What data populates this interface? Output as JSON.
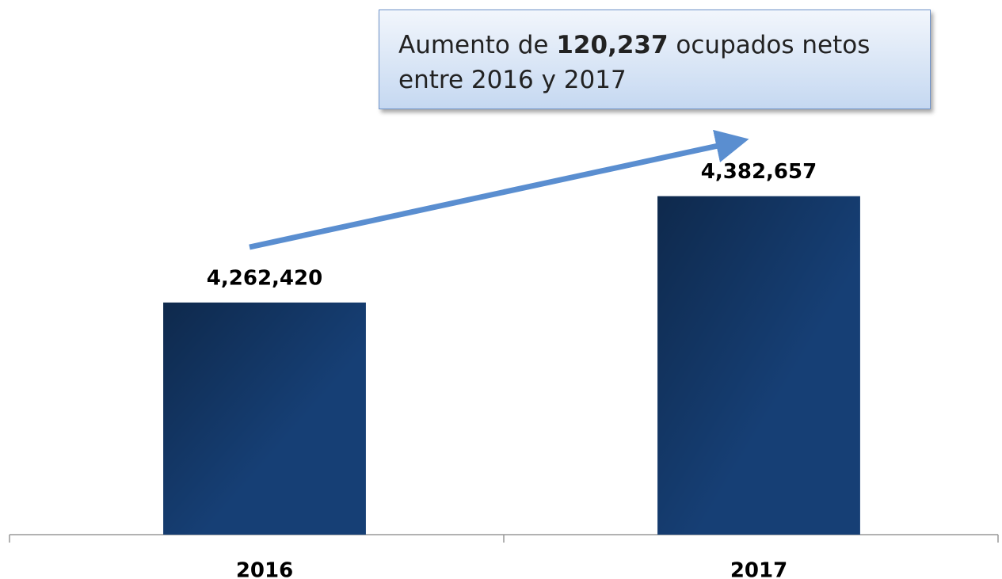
{
  "chart_data": {
    "type": "bar",
    "categories": [
      "2016",
      "2017"
    ],
    "values": [
      4262420,
      4382657
    ],
    "value_labels": [
      "4,262,420",
      "4,382,657"
    ],
    "color": "#163f75",
    "ylim": [
      4000000,
      4600000
    ],
    "annotation": {
      "prefix": "Aumento de ",
      "highlight": "120,237",
      "suffix": " ocupados netos entre 2016 y 2017"
    }
  }
}
